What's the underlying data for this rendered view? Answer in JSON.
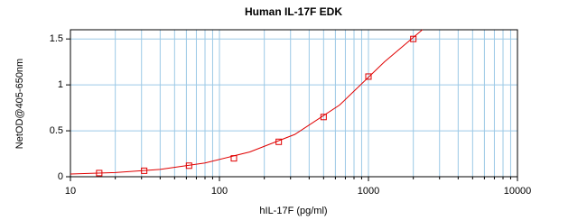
{
  "chart_data": {
    "type": "scatter",
    "title": "Human IL-17F EDK",
    "x_label": "hIL-17F (pg/ml)",
    "y_label": "NetOD@405-650nm",
    "x_scale": "log",
    "xlim": [
      10,
      10000
    ],
    "ylim": [
      0,
      1.6
    ],
    "xticks": [
      10,
      100,
      1000,
      10000
    ],
    "xminor_ticks": [
      20,
      30,
      40,
      50,
      60,
      70,
      80,
      90,
      200,
      300,
      400,
      500,
      600,
      700,
      800,
      900,
      2000,
      3000,
      4000,
      5000,
      6000,
      7000,
      8000,
      9000
    ],
    "yticks": [
      0,
      0.5,
      1,
      1.5
    ],
    "grid": true,
    "grid_color": "#9cc9e6",
    "series": [
      {
        "color": "#e00000",
        "marker": "square",
        "x": [
          15.6,
          31.25,
          62.5,
          125,
          250,
          500,
          1000,
          2000
        ],
        "values": [
          0.04,
          0.065,
          0.12,
          0.2,
          0.38,
          0.65,
          1.09,
          1.5
        ]
      },
      {
        "color": "#e00000",
        "marker": "line",
        "x": [
          10,
          20,
          40,
          80,
          160,
          320,
          640,
          1280,
          2300
        ],
        "values": [
          0.03,
          0.045,
          0.08,
          0.15,
          0.27,
          0.46,
          0.78,
          1.25,
          1.6
        ]
      }
    ]
  }
}
